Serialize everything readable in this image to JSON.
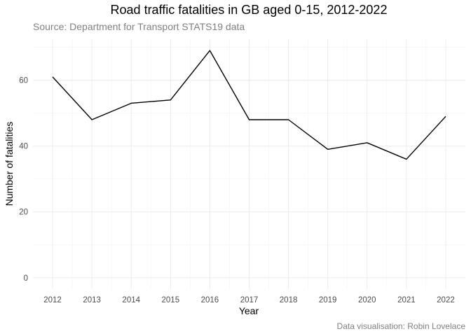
{
  "chart_data": {
    "type": "line",
    "title": "Road traffic fatalities in GB aged 0-15, 2012-2022",
    "subtitle": "Source: Department for Transport STATS19 data",
    "caption": "Data visualisation: Robin Lovelace",
    "xlabel": "Year",
    "ylabel": "Number of fatalities",
    "x": [
      2012,
      2013,
      2014,
      2015,
      2016,
      2017,
      2018,
      2019,
      2020,
      2021,
      2022
    ],
    "series": [
      {
        "values": [
          61,
          48,
          53,
          54,
          69,
          48,
          48,
          39,
          41,
          36,
          49
        ]
      }
    ],
    "xlim": [
      2011.5,
      2022.5
    ],
    "ylim": [
      -3.45,
      72.45
    ],
    "yticks": [
      0,
      20,
      40,
      60
    ],
    "grid": true,
    "line_color": "#000000"
  }
}
